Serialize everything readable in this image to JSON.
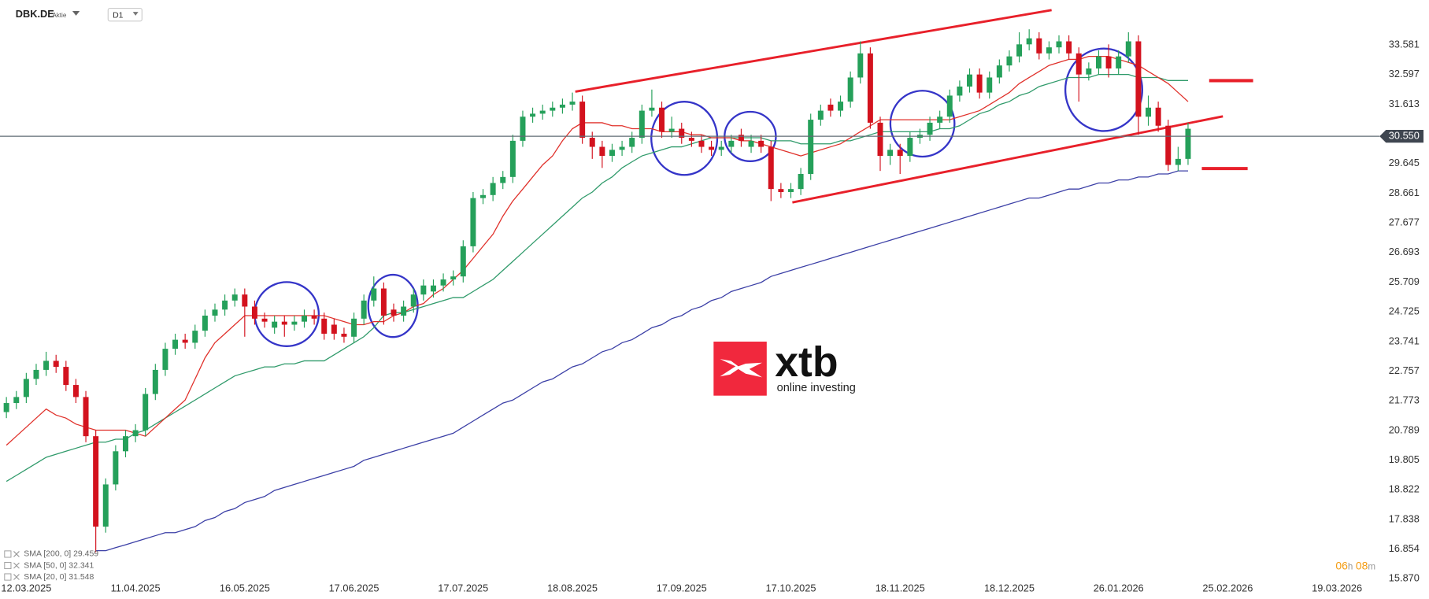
{
  "chart_data": {
    "type": "candlestick",
    "title": "DBK.DE",
    "subtitle": "Aktie",
    "timeframe": "D1",
    "categories": [
      null,
      null,
      "12.03.2025",
      null,
      null,
      null,
      null,
      null,
      null,
      null,
      null,
      null,
      null,
      "11.04.2025",
      null,
      null,
      null,
      null,
      null,
      null,
      null,
      null,
      null,
      null,
      "16.05.2025",
      null,
      null,
      null,
      null,
      null,
      null,
      null,
      null,
      null,
      null,
      "17.06.2025",
      null,
      null,
      null,
      null,
      null,
      null,
      null,
      null,
      null,
      null,
      "17.07.2025",
      null,
      null,
      null,
      null,
      null,
      null,
      null,
      null,
      null,
      null,
      "18.08.2025",
      null,
      null,
      null,
      null,
      null,
      null,
      null,
      null,
      null,
      null,
      "17.09.2025",
      null,
      null,
      null,
      null,
      null,
      null,
      null,
      null,
      null,
      null,
      "17.10.2025",
      null,
      null,
      null,
      null,
      null,
      null,
      null,
      null,
      null,
      null,
      "18.11.2025",
      null,
      null,
      null,
      null,
      null,
      null,
      null,
      null,
      null,
      null,
      "18.12.2025",
      null,
      null,
      null,
      null,
      null,
      null,
      null,
      null,
      null,
      null,
      "26.01.2026",
      null,
      null,
      null,
      null,
      null,
      null,
      null,
      null,
      null,
      null,
      "25.02.2026",
      null,
      null,
      null,
      null,
      null,
      null,
      null,
      null,
      null,
      null,
      "19.03.2026"
    ],
    "open": [
      21.4,
      21.7,
      21.9,
      22.5,
      22.8,
      23.1,
      22.9,
      22.3,
      21.9,
      20.6,
      17.6,
      19.0,
      20.1,
      20.6,
      20.8,
      22.0,
      22.8,
      23.5,
      23.8,
      23.7,
      24.1,
      24.6,
      24.8,
      25.1,
      25.3,
      24.9,
      24.5,
      24.2,
      24.4,
      24.3,
      24.4,
      24.6,
      24.5,
      24.3,
      24.0,
      23.9,
      24.5,
      25.1,
      25.5,
      24.8,
      24.6,
      24.9,
      25.3,
      25.4,
      25.6,
      25.8,
      25.9,
      26.9,
      28.5,
      28.6,
      29.0,
      29.2,
      30.4,
      31.2,
      31.3,
      31.4,
      31.5,
      31.6,
      31.7,
      30.5,
      30.2,
      29.9,
      30.1,
      30.2,
      30.5,
      31.4,
      31.5,
      30.7,
      30.8,
      30.5,
      30.4,
      30.2,
      30.1,
      30.2,
      30.6,
      30.2,
      30.4,
      30.2,
      28.8,
      28.7,
      28.8,
      29.3,
      31.1,
      31.6,
      31.4,
      31.7,
      32.5,
      33.3,
      31.0,
      29.9,
      30.1,
      29.9,
      30.5,
      30.6,
      31.0,
      31.2,
      31.9,
      32.2,
      32.6,
      32.0,
      32.5,
      32.9,
      33.2,
      33.6,
      33.8,
      33.3,
      33.5,
      33.7,
      33.3,
      32.6,
      32.8,
      33.2,
      32.8,
      33.2,
      33.7,
      31.2,
      31.5,
      30.9,
      29.6,
      29.8,
      null,
      null,
      null,
      null,
      null,
      null,
      null,
      null,
      null,
      null,
      null,
      null,
      null,
      null,
      null
    ],
    "high": [
      21.9,
      22.1,
      22.7,
      23.0,
      23.4,
      23.3,
      23.1,
      22.5,
      22.1,
      20.8,
      19.2,
      20.3,
      20.8,
      21.0,
      22.2,
      23.0,
      23.7,
      24.0,
      24.0,
      24.3,
      24.8,
      25.0,
      25.3,
      25.5,
      25.5,
      25.1,
      24.7,
      24.6,
      24.6,
      24.6,
      24.8,
      24.8,
      24.7,
      24.5,
      24.2,
      24.7,
      25.3,
      25.9,
      25.7,
      25.0,
      25.1,
      25.5,
      25.8,
      25.8,
      26.0,
      26.1,
      27.1,
      28.7,
      28.8,
      29.2,
      29.4,
      30.6,
      31.4,
      31.5,
      31.6,
      31.7,
      31.8,
      32.0,
      31.9,
      30.7,
      30.4,
      30.3,
      30.4,
      30.7,
      31.6,
      32.1,
      31.7,
      31.2,
      31.0,
      30.7,
      30.6,
      30.4,
      30.4,
      30.6,
      30.8,
      30.6,
      30.6,
      30.4,
      29.0,
      29.0,
      29.5,
      31.3,
      31.6,
      31.8,
      31.9,
      32.7,
      33.7,
      33.5,
      31.2,
      30.3,
      30.3,
      30.7,
      30.8,
      31.2,
      31.4,
      32.1,
      32.4,
      32.8,
      32.8,
      32.7,
      33.1,
      33.4,
      34.0,
      34.1,
      34.0,
      33.7,
      33.9,
      33.9,
      33.5,
      33.0,
      33.4,
      33.6,
      33.4,
      34.0,
      33.9,
      31.9,
      31.7,
      31.1,
      30.2,
      31.0,
      null,
      null,
      null,
      null,
      null,
      null,
      null,
      null,
      null,
      null,
      null,
      null,
      null,
      null,
      null
    ],
    "low": [
      21.2,
      21.5,
      21.7,
      22.3,
      22.6,
      22.7,
      22.1,
      21.7,
      20.4,
      16.75,
      17.4,
      18.8,
      19.9,
      20.4,
      20.6,
      21.8,
      22.6,
      23.3,
      23.5,
      23.5,
      23.9,
      24.4,
      24.6,
      24.9,
      23.9,
      24.3,
      24.2,
      24.0,
      23.9,
      24.1,
      24.2,
      24.3,
      23.8,
      23.8,
      23.7,
      23.7,
      24.3,
      24.9,
      24.3,
      24.4,
      24.4,
      24.7,
      25.1,
      25.2,
      25.4,
      25.6,
      25.7,
      26.7,
      28.3,
      28.4,
      28.8,
      29.0,
      30.2,
      31.0,
      31.1,
      31.2,
      31.3,
      31.4,
      30.3,
      29.8,
      29.5,
      29.7,
      29.9,
      30.0,
      30.3,
      31.2,
      30.5,
      30.5,
      30.3,
      30.2,
      30.0,
      29.9,
      29.9,
      30.0,
      30.2,
      30.0,
      30.0,
      28.4,
      28.5,
      28.5,
      28.6,
      29.1,
      30.9,
      31.2,
      31.2,
      31.5,
      32.3,
      30.8,
      29.4,
      29.6,
      29.3,
      29.7,
      30.3,
      30.4,
      30.8,
      31.0,
      31.7,
      32.0,
      31.8,
      31.8,
      32.3,
      32.7,
      33.0,
      33.4,
      33.1,
      33.1,
      33.3,
      33.1,
      31.7,
      32.4,
      32.6,
      32.5,
      32.6,
      33.0,
      30.6,
      30.9,
      30.7,
      29.4,
      29.4,
      29.6,
      null,
      null,
      null,
      null,
      null,
      null,
      null,
      null,
      null,
      null,
      null,
      null,
      null,
      null,
      null
    ],
    "close": [
      21.7,
      21.9,
      22.5,
      22.8,
      23.1,
      22.9,
      22.3,
      21.9,
      20.6,
      17.6,
      19.0,
      20.1,
      20.6,
      20.8,
      22.0,
      22.8,
      23.5,
      23.8,
      23.7,
      24.1,
      24.6,
      24.8,
      25.1,
      25.3,
      24.9,
      24.5,
      24.4,
      24.4,
      24.3,
      24.4,
      24.6,
      24.5,
      24.0,
      24.0,
      23.9,
      24.5,
      25.1,
      25.5,
      24.6,
      24.6,
      24.9,
      25.3,
      25.6,
      25.6,
      25.8,
      25.9,
      26.9,
      28.5,
      28.6,
      29.0,
      29.2,
      30.4,
      31.2,
      31.3,
      31.4,
      31.5,
      31.6,
      31.7,
      30.5,
      30.2,
      29.9,
      30.1,
      30.2,
      30.5,
      31.4,
      31.5,
      30.7,
      30.8,
      30.5,
      30.4,
      30.2,
      30.1,
      30.2,
      30.4,
      30.4,
      30.4,
      30.2,
      28.8,
      28.7,
      28.8,
      29.3,
      31.1,
      31.4,
      31.4,
      31.7,
      32.5,
      33.3,
      31.0,
      29.9,
      30.1,
      29.9,
      30.5,
      30.6,
      31.0,
      31.2,
      31.9,
      32.2,
      32.6,
      32.0,
      32.5,
      32.9,
      33.2,
      33.6,
      33.8,
      33.3,
      33.5,
      33.7,
      33.3,
      32.6,
      32.8,
      33.2,
      32.8,
      33.2,
      33.7,
      31.2,
      31.5,
      30.9,
      29.6,
      29.8,
      30.8,
      null,
      null,
      null,
      null,
      null,
      null,
      null,
      null,
      null,
      null,
      null,
      null,
      null,
      null,
      null
    ],
    "up_color": "#25a05a",
    "down_color": "#d3121e",
    "series": [
      {
        "name": "SMA [200, 0] 29.459",
        "color": "#3b3fa6",
        "values": [
          null,
          null,
          null,
          null,
          null,
          null,
          null,
          null,
          null,
          16.8,
          16.8,
          16.9,
          17.0,
          17.1,
          17.2,
          17.3,
          17.4,
          17.4,
          17.5,
          17.6,
          17.8,
          17.9,
          18.1,
          18.2,
          18.4,
          18.5,
          18.6,
          18.8,
          18.9,
          19.0,
          19.1,
          19.2,
          19.3,
          19.4,
          19.5,
          19.6,
          19.8,
          19.9,
          20.0,
          20.1,
          20.2,
          20.3,
          20.4,
          20.5,
          20.6,
          20.7,
          20.9,
          21.1,
          21.3,
          21.5,
          21.7,
          21.8,
          22.0,
          22.2,
          22.4,
          22.5,
          22.7,
          22.9,
          23.0,
          23.2,
          23.4,
          23.5,
          23.7,
          23.8,
          24.0,
          24.2,
          24.3,
          24.5,
          24.6,
          24.8,
          24.9,
          25.1,
          25.2,
          25.4,
          25.5,
          25.6,
          25.7,
          25.9,
          26.0,
          26.1,
          26.2,
          26.3,
          26.4,
          26.5,
          26.6,
          26.7,
          26.8,
          26.9,
          27.0,
          27.1,
          27.2,
          27.3,
          27.4,
          27.5,
          27.6,
          27.7,
          27.8,
          27.9,
          28.0,
          28.1,
          28.2,
          28.3,
          28.4,
          28.5,
          28.5,
          28.6,
          28.7,
          28.8,
          28.8,
          28.9,
          29.0,
          29.0,
          29.1,
          29.1,
          29.2,
          29.2,
          29.3,
          29.3,
          29.4,
          29.4,
          null,
          null,
          null,
          null,
          null,
          null,
          null,
          null,
          null,
          null,
          null,
          null,
          null,
          null,
          null
        ]
      },
      {
        "name": "SMA [50, 0] 32.341",
        "color": "#2f9a6a",
        "values": [
          19.1,
          19.3,
          19.5,
          19.7,
          19.9,
          20.0,
          20.1,
          20.2,
          20.3,
          20.4,
          20.4,
          20.5,
          20.5,
          20.7,
          20.8,
          21.0,
          21.2,
          21.4,
          21.6,
          21.8,
          22.0,
          22.2,
          22.4,
          22.6,
          22.7,
          22.8,
          22.9,
          22.9,
          23.0,
          23.0,
          23.1,
          23.1,
          23.1,
          23.3,
          23.5,
          23.7,
          23.9,
          24.2,
          24.6,
          24.7,
          24.7,
          24.8,
          24.9,
          25.0,
          25.1,
          25.2,
          25.2,
          25.4,
          25.6,
          25.8,
          26.1,
          26.4,
          26.7,
          27.0,
          27.3,
          27.6,
          27.9,
          28.2,
          28.5,
          28.7,
          29.0,
          29.2,
          29.5,
          29.7,
          29.9,
          30.0,
          30.1,
          30.2,
          30.2,
          30.3,
          30.4,
          30.5,
          30.5,
          30.5,
          30.5,
          30.5,
          30.5,
          30.4,
          30.4,
          30.4,
          30.3,
          30.3,
          30.3,
          30.3,
          30.4,
          30.4,
          30.5,
          30.6,
          30.7,
          30.7,
          30.7,
          30.7,
          30.7,
          30.7,
          30.8,
          30.8,
          30.9,
          31.1,
          31.3,
          31.4,
          31.6,
          31.7,
          31.9,
          32.0,
          32.2,
          32.3,
          32.4,
          32.5,
          32.5,
          32.5,
          32.6,
          32.6,
          32.6,
          32.6,
          32.5,
          32.5,
          32.5,
          32.4,
          32.4,
          32.4,
          null,
          null,
          null,
          null,
          null,
          null,
          null,
          null,
          null,
          null,
          null,
          null,
          null,
          null,
          null
        ]
      },
      {
        "name": "SMA [20, 0] 31.548",
        "color": "#e0302a",
        "values": [
          20.3,
          20.6,
          20.9,
          21.2,
          21.5,
          21.3,
          21.2,
          21.0,
          20.9,
          20.8,
          20.8,
          20.8,
          20.8,
          20.7,
          20.6,
          20.9,
          21.2,
          21.5,
          21.8,
          22.5,
          23.2,
          23.7,
          24.0,
          24.3,
          24.6,
          24.6,
          24.6,
          24.6,
          24.6,
          24.6,
          24.6,
          24.6,
          24.6,
          24.5,
          24.4,
          24.3,
          24.3,
          24.4,
          24.4,
          24.6,
          24.7,
          24.9,
          25.0,
          25.3,
          25.5,
          25.8,
          26.1,
          26.5,
          26.9,
          27.3,
          27.9,
          28.4,
          28.8,
          29.2,
          29.6,
          29.9,
          30.4,
          30.8,
          31.0,
          31.0,
          31.0,
          30.9,
          30.9,
          30.8,
          30.8,
          30.8,
          30.7,
          30.7,
          30.7,
          30.6,
          30.6,
          30.5,
          30.5,
          30.5,
          30.4,
          30.4,
          30.3,
          30.2,
          30.1,
          30.0,
          29.9,
          30.0,
          30.1,
          30.2,
          30.3,
          30.5,
          30.7,
          30.9,
          31.1,
          31.1,
          31.1,
          31.1,
          31.1,
          31.1,
          31.1,
          31.1,
          31.2,
          31.3,
          31.4,
          31.6,
          31.8,
          32.0,
          32.3,
          32.5,
          32.7,
          32.9,
          33.0,
          33.1,
          33.1,
          33.2,
          33.2,
          33.2,
          33.1,
          33.0,
          32.9,
          32.7,
          32.5,
          32.3,
          32.0,
          31.7,
          null,
          null,
          null,
          null,
          null,
          null,
          null,
          null,
          null,
          null,
          null,
          null,
          null,
          null,
          null
        ]
      }
    ],
    "ylim": [
      15.2,
      35.07
    ],
    "yticks": [
      {
        "value": 15.87,
        "label": "15.870"
      },
      16.854,
      17.838,
      18.822,
      19.805,
      20.789,
      21.773,
      22.757,
      23.741,
      24.725,
      25.709,
      26.693,
      27.677,
      28.661,
      29.645,
      31.613,
      32.597,
      33.581
    ],
    "current_price": {
      "value": 30.55,
      "label": "30.550"
    }
  },
  "logo": {
    "name": "xtb",
    "tagline": "online investing"
  },
  "timer": [
    "06",
    "h",
    "08",
    "m"
  ]
}
